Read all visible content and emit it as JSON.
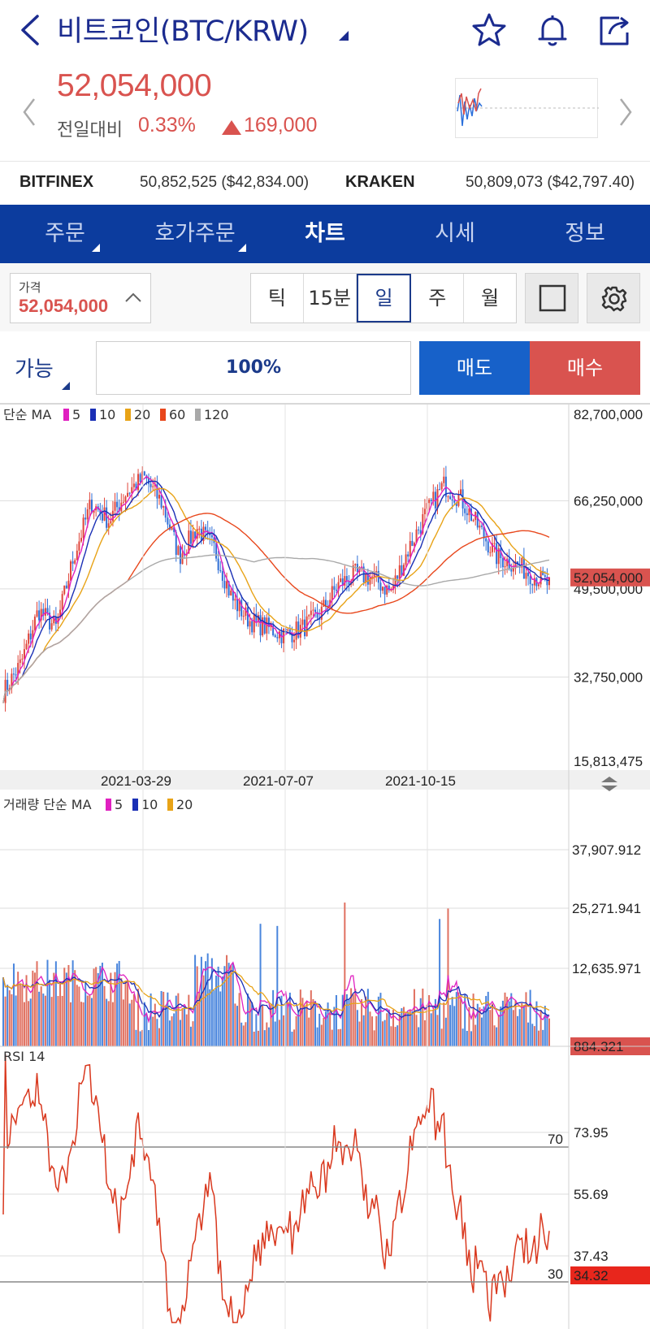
{
  "header": {
    "title": "비트코인(BTC/KRW)",
    "icons": [
      "back-icon",
      "star-icon",
      "bell-icon",
      "share-icon"
    ]
  },
  "quote": {
    "price": "52,054,000",
    "compare_label": "전일대비",
    "change_pct": "0.33%",
    "change_abs": "169,000",
    "up_color": "#d9534f"
  },
  "exchanges": [
    {
      "name": "BITFINEX",
      "value": "50,852,525 ($42,834.00)"
    },
    {
      "name": "KRAKEN",
      "value": "50,809,073 ($42,797.40)"
    }
  ],
  "tabs": [
    {
      "label": "주문",
      "active": false
    },
    {
      "label": "호가주문",
      "active": false
    },
    {
      "label": "차트",
      "active": true
    },
    {
      "label": "시세",
      "active": false
    },
    {
      "label": "정보",
      "active": false
    }
  ],
  "controls": {
    "price_label": "가격",
    "price_value": "52,054,000",
    "periods": [
      "틱",
      "15분",
      "일",
      "주",
      "월"
    ],
    "active_period": "일"
  },
  "trade": {
    "avail_label": "가능",
    "percent": "100%",
    "sell_label": "매도",
    "buy_label": "매수",
    "sell_color": "#1761c9",
    "buy_color": "#d9534f"
  },
  "chart_data": [
    {
      "type": "candlestick",
      "legend_title": "단순 MA",
      "ma_series": [
        {
          "name": "5",
          "color": "#e020c0"
        },
        {
          "name": "10",
          "color": "#1a2fb5"
        },
        {
          "name": "20",
          "color": "#e8a317"
        },
        {
          "name": "60",
          "color": "#e8471c"
        },
        {
          "name": "120",
          "color": "#a9a9a9"
        }
      ],
      "y_ticks": [
        "82,700,000",
        "66,250,000",
        "49,500,000",
        "32,750,000",
        "15,813,475"
      ],
      "ylim": [
        15813475,
        82700000
      ],
      "current_price_label": "52,054,000",
      "x_ticks": [
        "2021-03-29",
        "2021-07-07",
        "2021-10-15"
      ],
      "close_path": [
        22,
        30,
        45,
        40,
        60,
        75,
        70,
        78,
        82,
        75,
        60,
        68,
        62,
        48,
        42,
        40,
        38,
        40,
        44,
        52,
        55,
        54,
        50,
        62,
        72,
        80,
        76,
        68,
        60,
        58,
        55,
        52
      ]
    },
    {
      "type": "bar",
      "legend_title": "거래량 단순 MA",
      "ma_series": [
        {
          "name": "5",
          "color": "#e020c0"
        },
        {
          "name": "10",
          "color": "#1a2fb5"
        },
        {
          "name": "20",
          "color": "#e8a317"
        }
      ],
      "y_ticks": [
        "37,907.912",
        "25,271.941",
        "12,635.971"
      ],
      "current_value_label": "884.321"
    },
    {
      "type": "line",
      "legend_title": "RSI 14",
      "y_ticks": [
        "73.95",
        "55.69",
        "37.43"
      ],
      "levels": [
        70,
        30
      ],
      "current_value_label": "34.32",
      "line_color": "#d9381e"
    }
  ]
}
